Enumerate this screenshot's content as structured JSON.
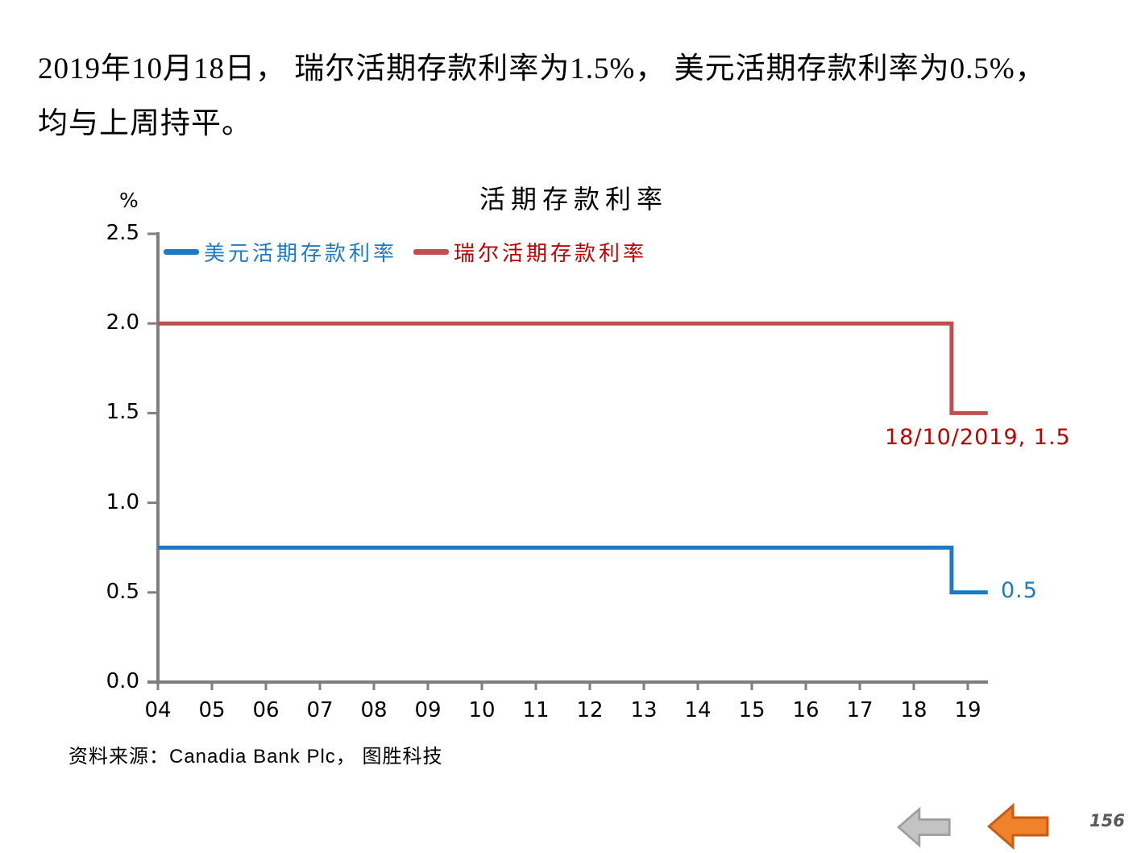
{
  "heading": {
    "line1": "2019年10月18日， 瑞尔活期存款利率为1.5%， 美元活期存款利率为0.5%，",
    "line2": "均与上周持平。"
  },
  "chart_data": {
    "type": "line",
    "title": "活期存款利率",
    "unit_label": "%",
    "x_tick_labels": [
      "04",
      "05",
      "06",
      "07",
      "08",
      "09",
      "10",
      "11",
      "12",
      "13",
      "14",
      "15",
      "16",
      "17",
      "18",
      "19"
    ],
    "y_tick_labels": [
      "0.0",
      "0.5",
      "1.0",
      "1.5",
      "2.0",
      "2.5"
    ],
    "ylim": [
      0.0,
      2.5
    ],
    "xlim": [
      4,
      19.37
    ],
    "drop_x": 18.7,
    "axis_color": "#7F7F7F",
    "grid": "off",
    "legend_position": "top-left-inside",
    "series": [
      {
        "name": "美元活期存款利率",
        "color": "#1F7AC4",
        "rate_before": 0.75,
        "rate_after": 0.5,
        "change_date": "18/10/2019",
        "end_label": "0.5",
        "label_color": "#1F7AC4"
      },
      {
        "name": "瑞尔活期存款利率",
        "color": "#C0504D",
        "rate_before": 2.0,
        "rate_after": 1.5,
        "change_date": "18/10/2019",
        "end_label": "18/10/2019, 1.5",
        "label_color": "#C00000"
      }
    ]
  },
  "source_note": "资料来源：Canadia Bank Plc， 图胜科技",
  "page_number": "156",
  "nav": {
    "gray_arrow": {
      "name": "previous",
      "fill": "#C3C3C3",
      "stroke": "#9E9E9E"
    },
    "orange_arrow": {
      "name": "previous-highlighted",
      "fill": "#F0822B",
      "stroke": "#C55E1A"
    }
  }
}
